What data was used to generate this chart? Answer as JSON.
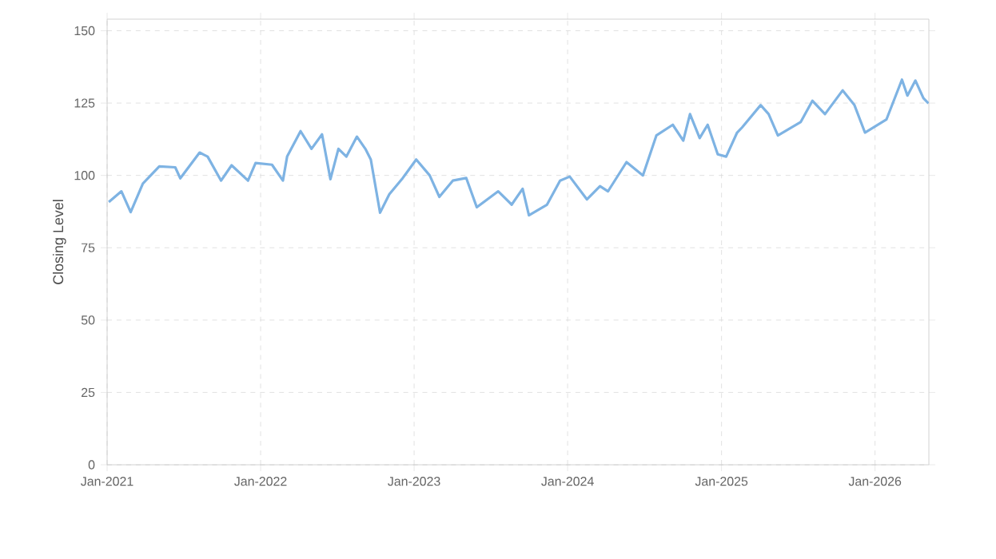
{
  "chart_data": {
    "type": "line",
    "ylabel": "Closing Level",
    "grid": true,
    "line_style": "solid",
    "marker": "none",
    "xlim": [
      "2021-01-01",
      "2026-05-09"
    ],
    "ylim": [
      0,
      154
    ],
    "yticks": [
      0,
      25,
      50,
      75,
      100,
      125,
      150
    ],
    "xticks": [
      {
        "value": "2021-01-01",
        "label": "Jan-2021"
      },
      {
        "value": "2022-01-01",
        "label": "Jan-2022"
      },
      {
        "value": "2023-01-01",
        "label": "Jan-2023"
      },
      {
        "value": "2024-01-01",
        "label": "Jan-2024"
      },
      {
        "value": "2025-01-01",
        "label": "Jan-2025"
      },
      {
        "value": "2026-01-01",
        "label": "Jan-2026"
      }
    ],
    "x": [
      "2021-01-05",
      "2021-02-04",
      "2021-02-26",
      "2021-03-27",
      "2021-05-05",
      "2021-06-12",
      "2021-06-24",
      "2021-08-09",
      "2021-08-28",
      "2021-09-29",
      "2021-10-24",
      "2021-12-02",
      "2021-12-20",
      "2022-01-28",
      "2022-02-23",
      "2022-03-05",
      "2022-04-06",
      "2022-05-02",
      "2022-05-27",
      "2022-06-16",
      "2022-07-05",
      "2022-07-24",
      "2022-08-18",
      "2022-09-07",
      "2022-09-20",
      "2022-10-12",
      "2022-11-03",
      "2022-12-05",
      "2023-01-06",
      "2023-02-07",
      "2023-03-02",
      "2023-04-03",
      "2023-05-05",
      "2023-05-30",
      "2023-07-20",
      "2023-08-21",
      "2023-09-16",
      "2023-10-01",
      "2023-11-13",
      "2023-12-14",
      "2024-01-06",
      "2024-02-16",
      "2024-03-18",
      "2024-04-06",
      "2024-05-20",
      "2024-06-28",
      "2024-07-30",
      "2024-09-07",
      "2024-10-02",
      "2024-10-18",
      "2024-11-10",
      "2024-11-29",
      "2024-12-23",
      "2025-01-12",
      "2025-02-07",
      "2025-02-19",
      "2025-04-04",
      "2025-04-23",
      "2025-05-15",
      "2025-07-08",
      "2025-08-05",
      "2025-09-04",
      "2025-10-16",
      "2025-11-13",
      "2025-12-08",
      "2026-01-28",
      "2026-03-06",
      "2026-03-19",
      "2026-04-07",
      "2026-04-26",
      "2026-05-08"
    ],
    "series": [
      {
        "color": "#7eb3e3",
        "values": [
          90.8,
          94.5,
          87.3,
          97.2,
          103.1,
          102.8,
          99,
          107.9,
          106.5,
          98.2,
          103.5,
          98.2,
          104.3,
          103.7,
          98.2,
          106.5,
          115.3,
          109.2,
          114.2,
          98.7,
          109.2,
          106.5,
          113.4,
          109.2,
          105.5,
          87.1,
          93.5,
          99.1,
          105.5,
          100,
          92.6,
          98.2,
          99.1,
          89,
          94.5,
          89.9,
          95.4,
          86.2,
          89.9,
          98.2,
          99.6,
          91.7,
          96.3,
          94.5,
          104.6,
          100,
          113.8,
          117.5,
          112,
          121.2,
          112.9,
          117.5,
          107.3,
          106.5,
          114.8,
          116.6,
          124.3,
          121.2,
          113.8,
          118.4,
          125.8,
          121.2,
          129.4,
          124.3,
          114.8,
          119.3,
          133.1,
          127.6,
          132.8,
          126.7,
          124.9
        ]
      }
    ]
  }
}
